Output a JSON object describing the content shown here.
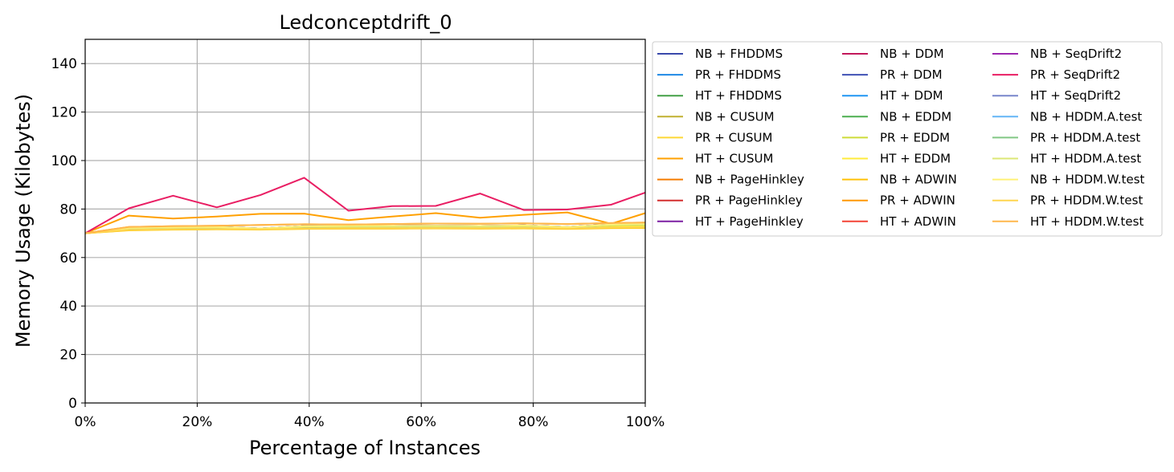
{
  "chart_data": {
    "type": "line",
    "title": "Ledconceptdrift_0",
    "xlabel": "Percentage of Instances",
    "ylabel": "Memory Usage (Kilobytes)",
    "xlim": [
      0,
      100
    ],
    "ylim": [
      0,
      150
    ],
    "xticks": [
      0,
      20,
      40,
      60,
      80,
      100
    ],
    "xtick_labels": [
      "0%",
      "20%",
      "40%",
      "60%",
      "80%",
      "100%"
    ],
    "yticks": [
      0,
      20,
      40,
      60,
      80,
      100,
      120,
      140
    ],
    "ytick_labels": [
      "0",
      "20",
      "40",
      "60",
      "80",
      "100",
      "120",
      "140"
    ],
    "grid": true,
    "legend_position": "outside-right",
    "x": [
      0,
      7.8,
      15.7,
      23.5,
      31.3,
      39.1,
      47,
      54.8,
      62.6,
      70.5,
      78.3,
      86.1,
      93.9,
      100
    ],
    "series": [
      {
        "name": "NB + FHDDMS",
        "color": "#3949ab",
        "values": [
          70,
          72.2,
          72.5,
          72.6,
          72,
          72.9,
          73,
          73,
          73.1,
          73,
          73.2,
          72.6,
          73.6,
          73.8
        ]
      },
      {
        "name": "PR + FHDDMS",
        "color": "#1e88e5",
        "values": [
          70,
          72,
          72.3,
          72.4,
          71.8,
          72.7,
          72.8,
          72.8,
          72.9,
          72.8,
          73,
          72.4,
          73.4,
          73.6
        ]
      },
      {
        "name": "HT + FHDDMS",
        "color": "#43a047",
        "values": [
          70,
          72.1,
          72.4,
          72.5,
          71.9,
          72.8,
          72.9,
          72.9,
          73,
          72.9,
          73.1,
          72.5,
          73.5,
          73.7
        ]
      },
      {
        "name": "NB + CUSUM",
        "color": "#c0b030",
        "values": [
          70,
          71.5,
          71.9,
          72,
          71.7,
          72.3,
          72.4,
          72.4,
          72.5,
          72.4,
          72.6,
          72.2,
          72.8,
          73
        ]
      },
      {
        "name": "PR + CUSUM",
        "color": "#fdd835",
        "values": [
          70,
          71.2,
          71.5,
          71.6,
          71.5,
          71.8,
          71.9,
          71.9,
          72,
          71.9,
          72,
          71.8,
          72.1,
          72.2
        ]
      },
      {
        "name": "HT + CUSUM",
        "color": "#ffa000",
        "values": [
          70,
          77.3,
          76.1,
          76.9,
          78,
          78.1,
          75.4,
          76.9,
          78.3,
          76.4,
          77.6,
          78.6,
          73.9,
          78.3
        ]
      },
      {
        "name": "NB + PageHinkley",
        "color": "#f57c00",
        "values": [
          70,
          72.1,
          72.4,
          72.5,
          71.9,
          72.8,
          72.9,
          72.9,
          73,
          72.9,
          73.1,
          72.5,
          73.5,
          73.7
        ]
      },
      {
        "name": "PR + PageHinkley",
        "color": "#d32f2f",
        "values": [
          70,
          72,
          72.3,
          72.4,
          71.8,
          72.7,
          72.8,
          72.8,
          72.9,
          72.8,
          73,
          72.4,
          73.4,
          73.6
        ]
      },
      {
        "name": "HT + PageHinkley",
        "color": "#7b1fa2",
        "values": [
          70,
          72.1,
          72.4,
          72.5,
          71.9,
          72.8,
          72.9,
          72.9,
          73,
          72.9,
          73.1,
          72.5,
          73.5,
          73.7
        ]
      },
      {
        "name": "NB + DDM",
        "color": "#c2185b",
        "values": [
          70,
          72.2,
          72.5,
          72.6,
          72,
          72.9,
          73,
          73,
          73.1,
          73,
          73.2,
          72.6,
          73.6,
          73.8
        ]
      },
      {
        "name": "PR + DDM",
        "color": "#3f51b5",
        "values": [
          70,
          72,
          72.3,
          72.4,
          71.8,
          72.7,
          72.8,
          72.8,
          72.9,
          72.8,
          73,
          72.4,
          73.4,
          73.6
        ]
      },
      {
        "name": "HT + DDM",
        "color": "#2196f3",
        "values": [
          70,
          72.1,
          72.4,
          72.5,
          71.9,
          72.8,
          72.9,
          72.9,
          73,
          72.9,
          73.1,
          72.5,
          73.5,
          73.7
        ]
      },
      {
        "name": "NB + EDDM",
        "color": "#4caf50",
        "values": [
          70,
          72.2,
          72.5,
          72.6,
          72,
          72.9,
          73,
          73,
          73.1,
          73,
          73.2,
          72.6,
          73.6,
          73.8
        ]
      },
      {
        "name": "PR + EDDM",
        "color": "#cddc39",
        "values": [
          70,
          71.8,
          72.1,
          72.2,
          71.8,
          72.5,
          72.6,
          72.6,
          72.7,
          72.6,
          72.8,
          72.3,
          73,
          73.2
        ]
      },
      {
        "name": "HT + EDDM",
        "color": "#ffeb3b",
        "values": [
          70,
          71.6,
          71.9,
          72,
          71.7,
          72.3,
          72.4,
          72.4,
          72.5,
          72.4,
          72.6,
          72.2,
          72.8,
          73
        ]
      },
      {
        "name": "NB + ADWIN",
        "color": "#ffc107",
        "values": [
          70,
          71.3,
          71.6,
          71.7,
          71.6,
          71.9,
          72,
          72,
          72.1,
          72,
          72.1,
          71.9,
          72.2,
          72.3
        ]
      },
      {
        "name": "PR + ADWIN",
        "color": "#ff9800",
        "values": [
          70,
          72.6,
          72.9,
          73.1,
          73.4,
          73.7,
          73.6,
          73.8,
          74,
          73.9,
          74.1,
          73.8,
          74.2,
          74.4
        ]
      },
      {
        "name": "HT + ADWIN",
        "color": "#f44336",
        "values": [
          70,
          72.1,
          72.4,
          72.5,
          71.9,
          72.8,
          72.9,
          72.9,
          73,
          72.9,
          73.1,
          72.5,
          73.5,
          73.7
        ]
      },
      {
        "name": "NB + SeqDrift2",
        "color": "#9c27b0",
        "values": [
          70,
          72.2,
          72.5,
          72.6,
          72,
          72.9,
          73,
          73,
          73.1,
          73,
          73.2,
          72.6,
          73.6,
          73.8
        ]
      },
      {
        "name": "PR + SeqDrift2",
        "color": "#e91e63",
        "values": [
          70,
          80.3,
          85.5,
          80.7,
          85.8,
          92.9,
          79.3,
          81.2,
          81.3,
          86.4,
          79.6,
          79.8,
          81.8,
          86.8
        ]
      },
      {
        "name": "HT + SeqDrift2",
        "color": "#7986cb",
        "values": [
          70,
          72.1,
          72.4,
          72.5,
          71.9,
          72.8,
          72.9,
          72.9,
          73,
          72.9,
          73.1,
          72.5,
          73.5,
          73.7
        ]
      },
      {
        "name": "NB + HDDM.A.test",
        "color": "#64b5f6",
        "values": [
          70,
          72.2,
          72.5,
          72.6,
          72,
          72.9,
          73,
          73,
          73.1,
          73,
          73.2,
          72.6,
          73.6,
          73.8
        ]
      },
      {
        "name": "PR + HDDM.A.test",
        "color": "#81c784",
        "values": [
          70,
          72,
          72.3,
          72.4,
          71.8,
          72.7,
          72.8,
          72.8,
          72.9,
          72.8,
          73,
          72.4,
          73.4,
          73.6
        ]
      },
      {
        "name": "HT + HDDM.A.test",
        "color": "#dce775",
        "values": [
          70,
          72.1,
          72.4,
          72.5,
          71.9,
          72.8,
          72.9,
          72.9,
          73,
          72.9,
          73.1,
          72.5,
          73.5,
          73.7
        ]
      },
      {
        "name": "NB + HDDM.W.test",
        "color": "#fff176",
        "values": [
          70,
          72.2,
          72.5,
          72.6,
          72,
          72.9,
          73,
          73,
          73.1,
          73,
          73.2,
          72.6,
          73.6,
          73.8
        ]
      },
      {
        "name": "PR + HDDM.W.test",
        "color": "#ffd54f",
        "values": [
          70,
          71.4,
          71.7,
          71.8,
          71.6,
          72,
          72.1,
          72.1,
          72.2,
          72.1,
          72.3,
          72,
          72.4,
          72.5
        ]
      },
      {
        "name": "HT + HDDM.W.test",
        "color": "#ffb74d",
        "values": [
          70,
          72.6,
          72.9,
          73.1,
          73.4,
          73.7,
          73.6,
          73.8,
          74,
          73.9,
          74.1,
          73.8,
          74.2,
          74.4
        ]
      }
    ]
  }
}
